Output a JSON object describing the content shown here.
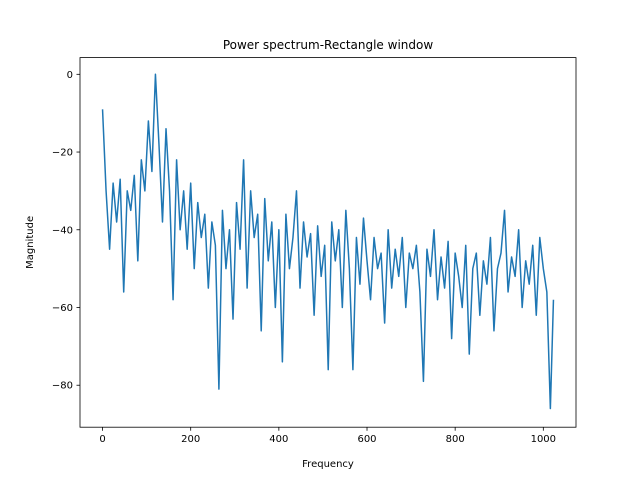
{
  "chart_data": {
    "type": "line",
    "title": "Power spectrum-Rectangle window",
    "xlabel": "Frequency",
    "ylabel": "Magnitude",
    "x": [
      0,
      8,
      16,
      24,
      32,
      40,
      48,
      56,
      64,
      72,
      80,
      88,
      96,
      104,
      112,
      120,
      128,
      136,
      144,
      152,
      160,
      168,
      176,
      184,
      192,
      200,
      208,
      216,
      224,
      232,
      240,
      248,
      256,
      264,
      272,
      280,
      288,
      296,
      304,
      312,
      320,
      328,
      336,
      344,
      352,
      360,
      368,
      376,
      384,
      392,
      400,
      408,
      416,
      424,
      432,
      440,
      448,
      456,
      464,
      472,
      480,
      488,
      496,
      504,
      512,
      520,
      528,
      536,
      544,
      552,
      560,
      568,
      576,
      584,
      592,
      600,
      608,
      616,
      624,
      632,
      640,
      648,
      656,
      664,
      672,
      680,
      688,
      696,
      704,
      712,
      720,
      728,
      736,
      744,
      752,
      760,
      768,
      776,
      784,
      792,
      800,
      808,
      816,
      824,
      832,
      840,
      848,
      856,
      864,
      872,
      880,
      888,
      896,
      904,
      912,
      920,
      928,
      936,
      944,
      952,
      960,
      968,
      976,
      984,
      992,
      1000,
      1008,
      1016,
      1023
    ],
    "series": [
      {
        "color": "#1f77b4",
        "values": [
          -9,
          -30,
          -45,
          -28,
          -38,
          -27,
          -56,
          -30,
          -35,
          -26,
          -48,
          -22,
          -30,
          -12,
          -25,
          0,
          -18,
          -38,
          -14,
          -30,
          -58,
          -22,
          -40,
          -30,
          -45,
          -28,
          -50,
          -33,
          -42,
          -36,
          -55,
          -38,
          -44,
          -81,
          -35,
          -50,
          -40,
          -63,
          -33,
          -45,
          -22,
          -55,
          -30,
          -42,
          -36,
          -66,
          -32,
          -48,
          -38,
          -60,
          -40,
          -74,
          -36,
          -50,
          -42,
          -30,
          -55,
          -38,
          -47,
          -41,
          -62,
          -39,
          -52,
          -44,
          -76,
          -38,
          -48,
          -40,
          -60,
          -35,
          -50,
          -76,
          -42,
          -54,
          -37,
          -48,
          -58,
          -42,
          -50,
          -46,
          -64,
          -40,
          -55,
          -45,
          -52,
          -42,
          -60,
          -46,
          -50,
          -44,
          -56,
          -79,
          -45,
          -52,
          -40,
          -58,
          -47,
          -55,
          -43,
          -68,
          -46,
          -52,
          -60,
          -44,
          -72,
          -50,
          -46,
          -62,
          -48,
          -54,
          -42,
          -66,
          -50,
          -46,
          -35,
          -56,
          -47,
          -52,
          -40,
          -60,
          -48,
          -54,
          -44,
          -62,
          -42,
          -50,
          -56,
          -86,
          -58
        ]
      }
    ],
    "xlim": [
      -51.15,
      1074.15
    ],
    "ylim": [
      -90.8,
      4.3
    ],
    "xticks": [
      0,
      200,
      400,
      600,
      800,
      1000
    ],
    "yticks": [
      {
        "value": -80,
        "label": "−80"
      },
      {
        "value": -60,
        "label": "−60"
      },
      {
        "value": -40,
        "label": "−40"
      },
      {
        "value": -20,
        "label": "−20"
      },
      0
    ]
  }
}
